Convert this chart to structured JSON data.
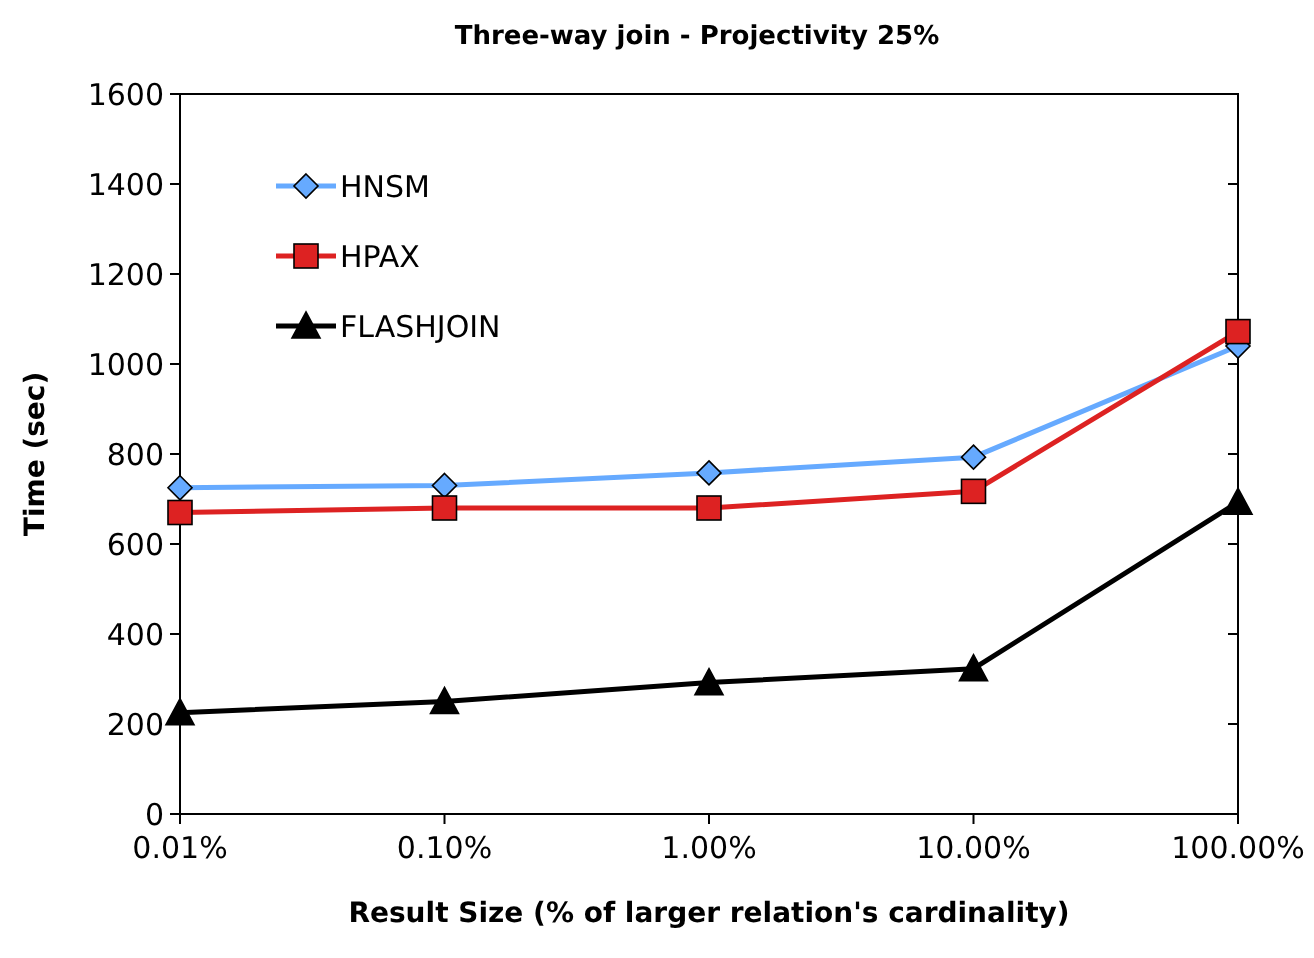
{
  "chart_data": {
    "type": "line",
    "title": "Three-way join - Projectivity 25%",
    "xlabel": "Result Size (% of larger relation's cardinality)",
    "ylabel": "Time (sec)",
    "categories": [
      "0.01%",
      "0.10%",
      "1.00%",
      "10.00%",
      "100.00%"
    ],
    "series": [
      {
        "name": "HNSM",
        "color": "#66aaff",
        "marker": "diamond",
        "values": [
          725,
          730,
          758,
          793,
          1040
        ]
      },
      {
        "name": "HPAX",
        "color": "#dd2222",
        "marker": "square",
        "values": [
          670,
          680,
          680,
          717,
          1072
        ]
      },
      {
        "name": "FLASHJOIN",
        "color": "#000000",
        "marker": "triangle",
        "values": [
          225,
          250,
          292,
          323,
          693
        ]
      }
    ],
    "ylim": [
      0,
      1600
    ],
    "yticks": [
      0,
      200,
      400,
      600,
      800,
      1000,
      1200,
      1400,
      1600
    ],
    "grid": false,
    "legend": "top left"
  }
}
